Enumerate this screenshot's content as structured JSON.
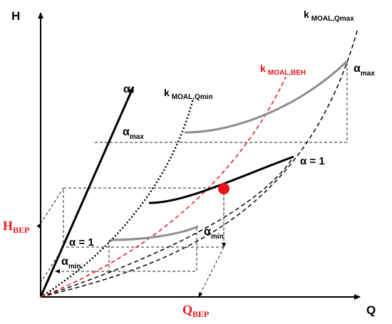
{
  "axes": {
    "x_label": "Q",
    "y_label": "H",
    "alpha_label": "α"
  },
  "curves": {
    "k_qmax": {
      "main": "k",
      "sub": "MOAL,Qmax"
    },
    "k_qmin": {
      "main": "k",
      "sub": "MOAL,Qmin"
    },
    "k_beh": {
      "main": "k",
      "sub": "MOAL,BEH"
    }
  },
  "labels": {
    "alpha_max_right": {
      "main": "α",
      "sub": "max"
    },
    "alpha_max_left": {
      "main": "α",
      "sub": "max"
    },
    "alpha_one_right": "α = 1",
    "alpha_one_left": "α = 1",
    "alpha_min_right": {
      "main": "α",
      "sub": "min"
    },
    "alpha_min_left": {
      "main": "α",
      "sub": "min"
    },
    "h_bep": {
      "main": "H",
      "sub": "BEP"
    },
    "q_bep": {
      "main": "Q",
      "sub": "BEP"
    }
  },
  "colors": {
    "axis": "#000000",
    "highlight": "#e8141a",
    "grey_curve": "#8c8c8c",
    "black_curve": "#000000"
  }
}
